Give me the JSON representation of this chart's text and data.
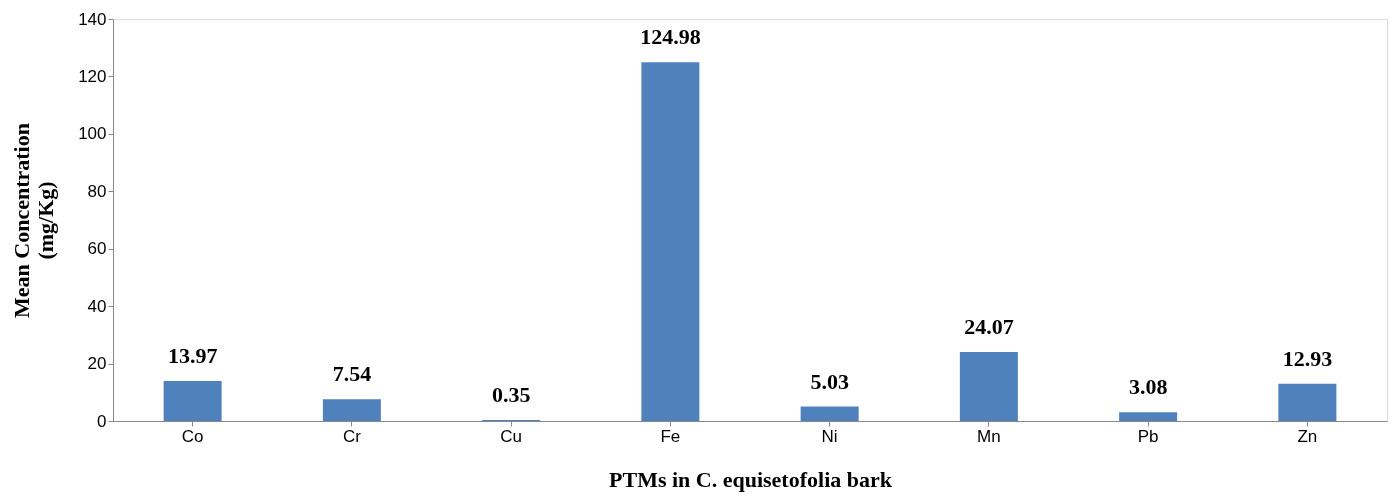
{
  "chart_data": {
    "type": "bar",
    "xlabel": "PTMs in C. equisetofolia bark",
    "ylabel": "Mean Concentration\n(mg/Kg)",
    "categories": [
      "Co",
      "Cr",
      "Cu",
      "Fe",
      "Ni",
      "Mn",
      "Pb",
      "Zn"
    ],
    "values": [
      13.97,
      7.54,
      0.35,
      124.98,
      5.03,
      24.07,
      3.08,
      12.93
    ],
    "color": "#4f81bd",
    "ylim": [
      0,
      140
    ],
    "yticks": [
      0,
      20,
      40,
      60,
      80,
      100,
      120,
      140
    ],
    "grid": false,
    "data_labels": true
  }
}
